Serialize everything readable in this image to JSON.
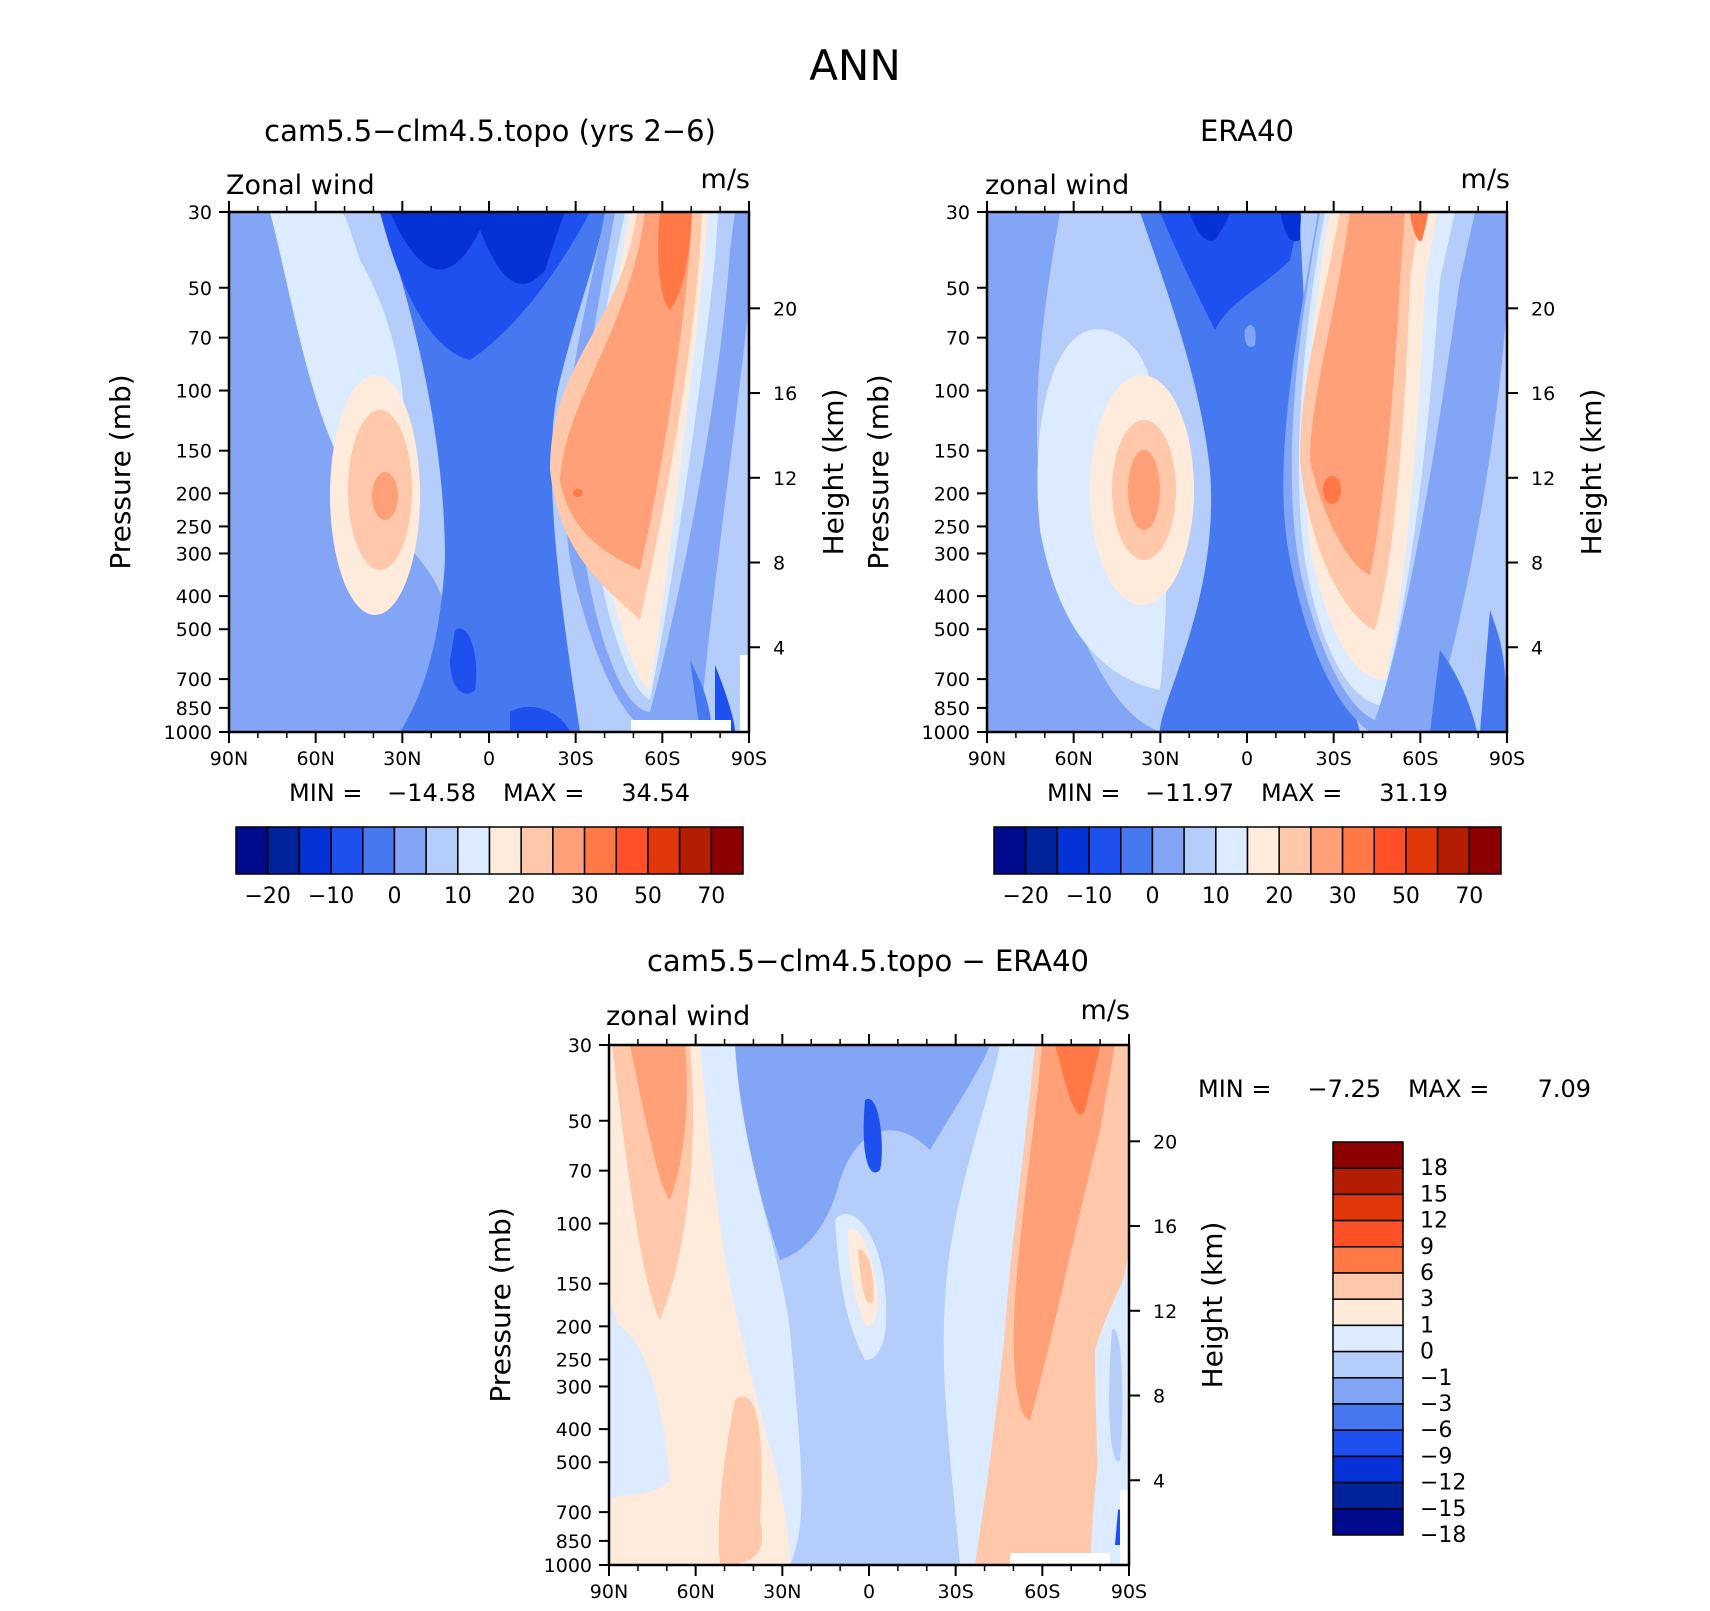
{
  "figure": {
    "title": "ANN"
  },
  "palette": {
    "diverging": [
      "#000a8c",
      "#00239c",
      "#0532d6",
      "#1e50f0",
      "#4678f0",
      "#82a5f5",
      "#b4cdfa",
      "#dcebff",
      "#ffebdc",
      "#ffc8aa",
      "#ffa078",
      "#ff7846",
      "#ff5028",
      "#e1370a",
      "#b41e00",
      "#8c0000"
    ],
    "difference": [
      "#8c0000",
      "#b41e00",
      "#e1370a",
      "#ff5028",
      "#ff7846",
      "#ffc8aa",
      "#ffebdc",
      "#dcebff",
      "#b4cdfa",
      "#82a5f5",
      "#4678f0",
      "#1e50f0",
      "#0532d6",
      "#00239c",
      "#000a8c"
    ]
  },
  "chart_data": [
    {
      "type": "heatmap",
      "title": "cam5.5−clm4.5.topo (yrs 2−6)",
      "corner_left": "Zonal wind",
      "corner_right": "m/s",
      "xlabel": "",
      "ylabel": "Pressure (mb)",
      "ylabel_right": "Height (km)",
      "x_ticks": [
        "90N",
        "60N",
        "30N",
        "0",
        "30S",
        "60S",
        "90S"
      ],
      "y_ticks": [
        "30",
        "50",
        "70",
        "100",
        "150",
        "200",
        "250",
        "300",
        "400",
        "500",
        "700",
        "850",
        "1000"
      ],
      "y_ticks_right": [
        "20",
        "16",
        "12",
        "8",
        "4"
      ],
      "min_label": "MIN =",
      "min_value": "−14.58",
      "max_label": "MAX =",
      "max_value": "34.54",
      "colorbar_labels": [
        "−20",
        "−10",
        "0",
        "10",
        "20",
        "30",
        "50",
        "70"
      ],
      "jets": [
        {
          "lat": 32,
          "p": 200,
          "peak": 34.5
        },
        {
          "lat": -30,
          "p": 200,
          "peak": 32
        },
        {
          "lat": -60,
          "p": 30,
          "peak": 28
        }
      ],
      "easterly": {
        "lat": 5,
        "p": 30,
        "min": -14.58
      }
    },
    {
      "type": "heatmap",
      "title": "ERA40",
      "corner_left": "zonal wind",
      "corner_right": "m/s",
      "xlabel": "",
      "ylabel": "Pressure (mb)",
      "ylabel_right": "Height (km)",
      "x_ticks": [
        "90N",
        "60N",
        "30N",
        "0",
        "30S",
        "60S",
        "90S"
      ],
      "y_ticks": [
        "30",
        "50",
        "70",
        "100",
        "150",
        "200",
        "250",
        "300",
        "400",
        "500",
        "700",
        "850",
        "1000"
      ],
      "y_ticks_right": [
        "20",
        "16",
        "12",
        "8",
        "4"
      ],
      "min_label": "MIN =",
      "min_value": "−11.97",
      "max_label": "MAX =",
      "max_value": "31.19",
      "colorbar_labels": [
        "−20",
        "−10",
        "0",
        "10",
        "20",
        "30",
        "50",
        "70"
      ],
      "jets": [
        {
          "lat": 35,
          "p": 200,
          "peak": 31.19
        },
        {
          "lat": -32,
          "p": 200,
          "peak": 30
        },
        {
          "lat": -60,
          "p": 30,
          "peak": 25
        }
      ],
      "easterly": {
        "lat": 5,
        "p": 30,
        "min": -11.97
      }
    },
    {
      "type": "heatmap",
      "title": "cam5.5−clm4.5.topo − ERA40",
      "corner_left": "zonal wind",
      "corner_right": "m/s",
      "xlabel": "",
      "ylabel": "Pressure (mb)",
      "ylabel_right": "Height (km)",
      "x_ticks": [
        "90N",
        "60N",
        "30N",
        "0",
        "30S",
        "60S",
        "90S"
      ],
      "y_ticks": [
        "30",
        "50",
        "70",
        "100",
        "150",
        "200",
        "250",
        "300",
        "400",
        "500",
        "700",
        "850",
        "1000"
      ],
      "y_ticks_right": [
        "20",
        "16",
        "12",
        "8",
        "4"
      ],
      "min_label": "MIN =",
      "min_value": "−7.25",
      "max_label": "MAX =",
      "max_value": "7.09",
      "colorbar_labels": [
        "18",
        "15",
        "12",
        "9",
        "6",
        "3",
        "1",
        "0",
        "−1",
        "−3",
        "−6",
        "−9",
        "−12",
        "−15",
        "−18"
      ]
    }
  ]
}
